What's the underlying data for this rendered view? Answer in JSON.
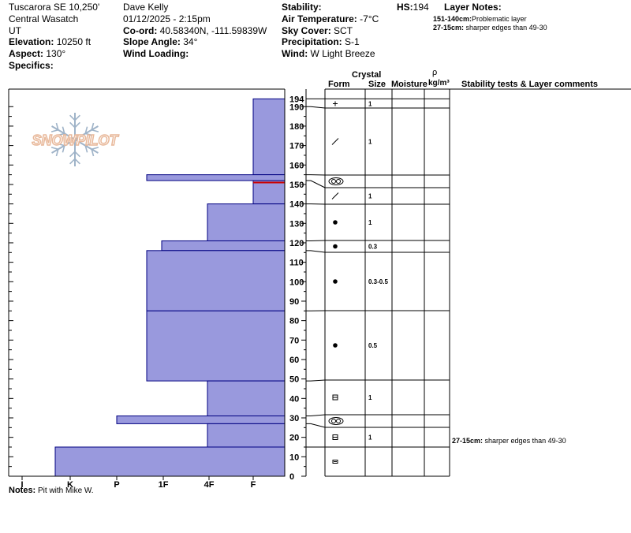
{
  "header": {
    "location": "Tuscarora SE 10,250'",
    "region": "Central Wasatch",
    "state": "UT",
    "elevation_label": "Elevation:",
    "elevation": " 10250 ft",
    "aspect_label": "Aspect:",
    "aspect": " 130°",
    "specifics_label": "Specifics:",
    "observer": "Dave Kelly",
    "datetime": "01/12/2025 - 2:15pm",
    "coord_label": "Co-ord:",
    "coord": " 40.58340N, -111.59839W",
    "slope_label": "Slope Angle:",
    "slope": " 34°",
    "wind_loading_label": "Wind Loading:",
    "stability_label": "Stability:",
    "air_temp_label": "Air Temperature:",
    "air_temp": " -7°C",
    "sky_label": "Sky Cover:",
    "sky": " SCT",
    "precip_label": "Precipitation:",
    "precip": " S-1",
    "wind_label": "Wind:",
    "wind": "  W Light Breeze",
    "hs_label": "HS:",
    "hs": "194",
    "layer_notes_label": "Layer Notes:",
    "layer_notes": [
      {
        "range": "151-140cm:",
        "text": "Problematic layer"
      },
      {
        "range": "27-15cm:",
        "text": " sharper edges than 49-30"
      }
    ]
  },
  "columns": {
    "crystal": "Crystal",
    "form": "Form",
    "size": "Size",
    "moisture": "Moisture",
    "rho": "ρ",
    "density_unit": "kg/m³",
    "stability": "Stability tests & Layer comments"
  },
  "notes_label": "Notes:",
  "notes": " Pit with Mike W.",
  "watermark": "SNOWPILOT",
  "colors": {
    "hardness_fill": "#9999dd",
    "hardness_stroke": "#000080",
    "problem_line": "#cc0000",
    "watermark": "#e8b89a",
    "snowflake": "#9fb3c8"
  },
  "chart_data": {
    "type": "snow_profile",
    "height_axis": {
      "unit": "cm",
      "min": 0,
      "max": 200,
      "ticks": [
        0,
        10,
        20,
        30,
        40,
        50,
        60,
        70,
        80,
        90,
        100,
        110,
        120,
        130,
        140,
        150,
        160,
        170,
        180,
        190
      ],
      "top_label": "194"
    },
    "hardness_axis": {
      "labels": [
        "I",
        "K",
        "P",
        "1F",
        "4F",
        "F"
      ]
    },
    "hardness_layers": [
      {
        "top": 194,
        "bottom": 155,
        "hardness": "F"
      },
      {
        "top": 155,
        "bottom": 152,
        "hardness": "P+"
      },
      {
        "top": 152,
        "bottom": 140,
        "hardness": "F"
      },
      {
        "top": 140,
        "bottom": 121,
        "hardness": "4F"
      },
      {
        "top": 121,
        "bottom": 116,
        "hardness": "1F+"
      },
      {
        "top": 116,
        "bottom": 85,
        "hardness": "1F"
      },
      {
        "top": 85,
        "bottom": 49,
        "hardness": "1F"
      },
      {
        "top": 49,
        "bottom": 31,
        "hardness": "4F"
      },
      {
        "top": 31,
        "bottom": 27,
        "hardness": "P-"
      },
      {
        "top": 27,
        "bottom": 15,
        "hardness": "4F"
      },
      {
        "top": 15,
        "bottom": 0,
        "hardness": "K+"
      }
    ],
    "problem_layer_line": 151,
    "crystal_layers": [
      {
        "top": 194,
        "bottom": 190,
        "form": "+",
        "size": "1"
      },
      {
        "top": 190,
        "bottom": 155,
        "form": "/",
        "size": "1"
      },
      {
        "top": 155,
        "bottom": 152,
        "form": "oo",
        "size": ""
      },
      {
        "top": 152,
        "bottom": 140,
        "form": "/",
        "size": "1"
      },
      {
        "top": 140,
        "bottom": 121,
        "form": "•",
        "size": "1"
      },
      {
        "top": 121,
        "bottom": 116,
        "form": "•",
        "size": "0.3"
      },
      {
        "top": 116,
        "bottom": 85,
        "form": "•",
        "size": "0.3-0.5"
      },
      {
        "top": 85,
        "bottom": 49,
        "form": "•",
        "size": "0.5"
      },
      {
        "top": 49,
        "bottom": 31,
        "form": "□",
        "size": "1"
      },
      {
        "top": 31,
        "bottom": 27,
        "form": "oo",
        "size": ""
      },
      {
        "top": 27,
        "bottom": 15,
        "form": "□",
        "size": "1"
      },
      {
        "top": 15,
        "bottom": 0,
        "form": "▭",
        "size": ""
      }
    ],
    "comments": [
      {
        "height": 20,
        "range": "27-15cm:",
        "text": " sharper edges than 49-30"
      }
    ]
  }
}
